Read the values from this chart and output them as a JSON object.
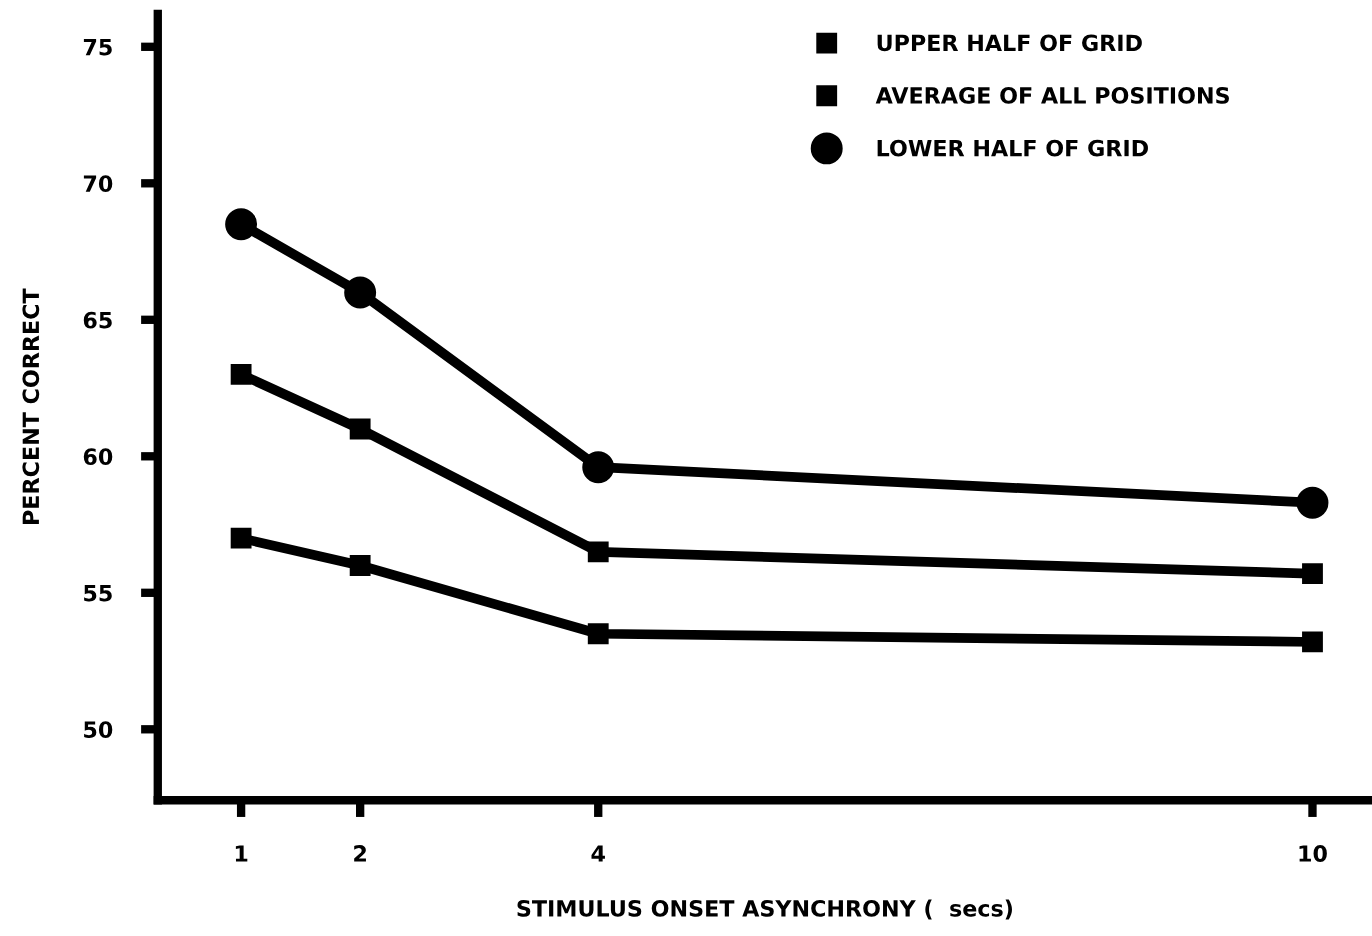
{
  "chart_data": {
    "type": "line",
    "xlabel": "STIMULUS ONSET ASYNCHRONY (  secs)",
    "ylabel": "PERCENT CORRECT",
    "x": [
      1,
      2,
      4,
      10
    ],
    "series": [
      {
        "name": "UPPER HALF OF GRID",
        "color": "#000000",
        "marker": "square",
        "values": [
          57.0,
          56.0,
          53.5,
          53.2
        ]
      },
      {
        "name": "AVERAGE OF ALL POSITIONS",
        "color": "#000000",
        "marker": "square",
        "values": [
          63.0,
          61.0,
          56.5,
          55.7
        ]
      },
      {
        "name": "LOWER HALF OF GRID",
        "color": "#000000",
        "marker": "circle",
        "values": [
          68.5,
          66.0,
          59.6,
          58.3
        ]
      }
    ],
    "xlim": [
      0.3,
      10.5
    ],
    "xticks": [
      1,
      2,
      4,
      10
    ],
    "ylim": [
      47.4,
      76.2
    ],
    "yticks": [
      50,
      55,
      60,
      65,
      70,
      75
    ],
    "grid": false,
    "legend": "top right",
    "line_style": "solid"
  }
}
